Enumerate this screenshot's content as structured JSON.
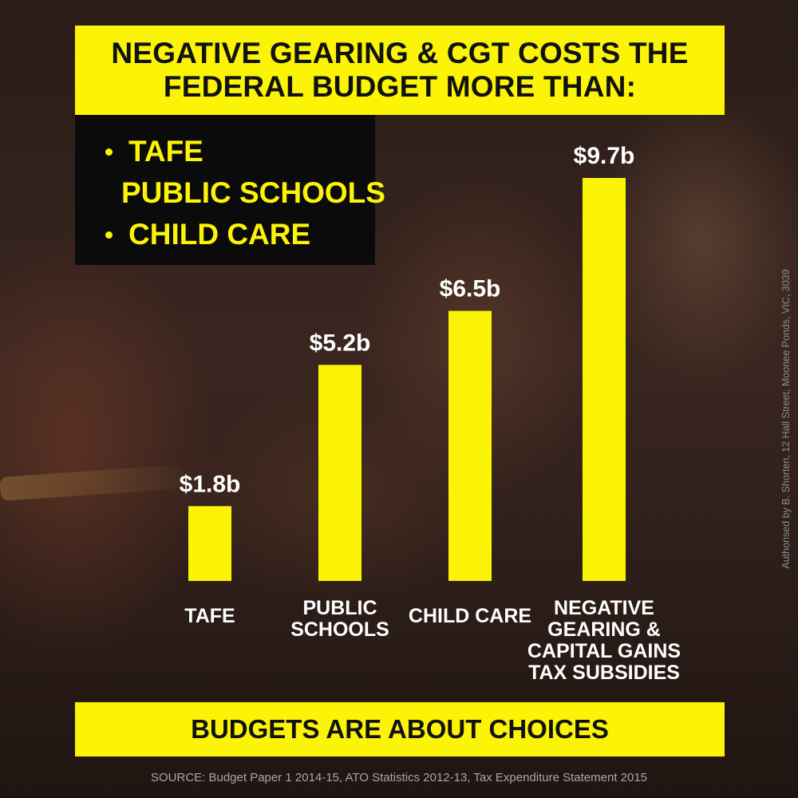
{
  "headline": {
    "line1": "NEGATIVE GEARING & CGT COSTS THE",
    "line2": "FEDERAL BUDGET MORE THAN:"
  },
  "bullets": [
    "TAFE",
    "PUBLIC SCHOOLS",
    "CHILD CARE"
  ],
  "footer": {
    "tagline": "BUDGETS ARE ABOUT CHOICES"
  },
  "source": "SOURCE: Budget Paper 1 2014-15, ATO Statistics 2012-13, Tax Expenditure Statement 2015",
  "authorisation": "Authorised by B. Shorten, 12 Hall Street, Moonee Ponds, VIC, 3039",
  "colors": {
    "accent": "#fbf406",
    "dark": "#0b0b0b",
    "text_light": "#ffffff"
  },
  "chart_data": {
    "type": "bar",
    "title": "",
    "xlabel": "",
    "ylabel": "",
    "categories": [
      [
        "TAFE"
      ],
      [
        "PUBLIC",
        "SCHOOLS"
      ],
      [
        "CHILD CARE"
      ],
      [
        "NEGATIVE",
        "GEARING &",
        "CAPITAL GAINS",
        "TAX SUBSIDIES"
      ]
    ],
    "values": [
      1.8,
      5.2,
      6.5,
      9.7
    ],
    "value_labels": [
      "$1.8b",
      "$5.2b",
      "$6.5b",
      "$9.7b"
    ],
    "unit": "$ billion",
    "ylim": [
      0,
      9.7
    ],
    "grid": false,
    "legend": "none"
  }
}
